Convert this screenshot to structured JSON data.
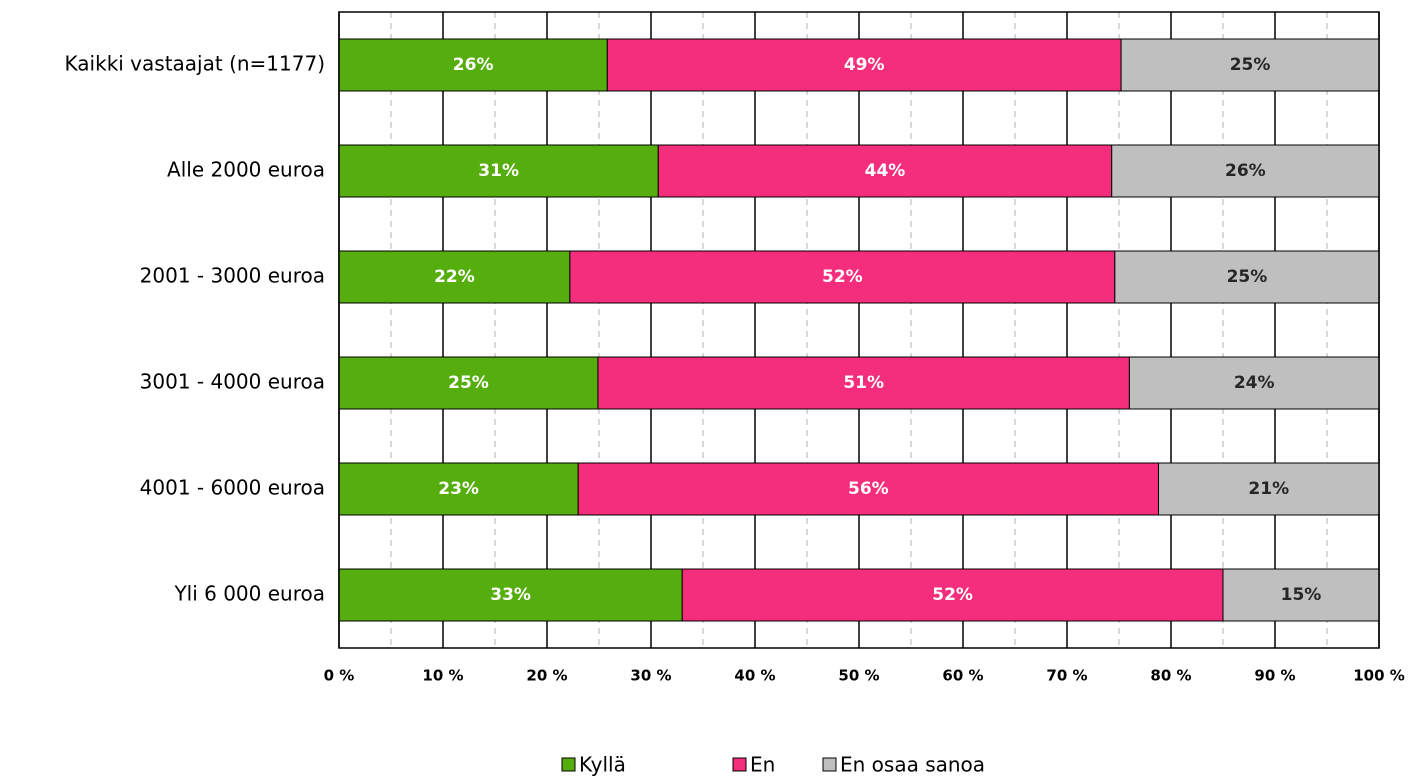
{
  "chart_data": {
    "type": "stacked-barh",
    "categories": [
      "Kaikki vastaajat (n=1177)",
      "Alle 2000 euroa",
      "2001 - 3000 euroa",
      "3001 - 4000 euroa",
      "4001 - 6000 euroa",
      "Yli 6 000 euroa"
    ],
    "series": [
      {
        "name": "Kyllä",
        "color": "#56ad0e",
        "label_color": "#ffffff",
        "values": [
          25.8,
          30.7,
          22.2,
          24.9,
          23.0,
          33.0
        ],
        "value_labels": [
          "26%",
          "31%",
          "22%",
          "25%",
          "23%",
          "33%"
        ]
      },
      {
        "name": "En",
        "color": "#f42d7c",
        "label_color": "#ffffff",
        "values": [
          49.4,
          43.6,
          52.4,
          51.1,
          55.8,
          52.0
        ],
        "value_labels": [
          "49%",
          "44%",
          "52%",
          "51%",
          "56%",
          "52%"
        ]
      },
      {
        "name": "En osaa sanoa",
        "color": "#bfbfbf",
        "label_color": "#262626",
        "values": [
          24.8,
          25.7,
          25.4,
          24.0,
          21.2,
          15.0
        ],
        "value_labels": [
          "25%",
          "26%",
          "25%",
          "24%",
          "21%",
          "15%"
        ]
      }
    ],
    "xlim": [
      0,
      100
    ],
    "xticks": [
      {
        "value": 0,
        "label": "0 %"
      },
      {
        "value": 10,
        "label": "10 %"
      },
      {
        "value": 20,
        "label": "20 %"
      },
      {
        "value": 30,
        "label": "30 %"
      },
      {
        "value": 40,
        "label": "40 %"
      },
      {
        "value": 50,
        "label": "50 %"
      },
      {
        "value": 60,
        "label": "60 %"
      },
      {
        "value": 70,
        "label": "70 %"
      },
      {
        "value": 80,
        "label": "80 %"
      },
      {
        "value": 90,
        "label": "90 %"
      },
      {
        "value": 100,
        "label": "100 %"
      }
    ],
    "minor_xticks": [
      5,
      15,
      25,
      35,
      45,
      55,
      65,
      75,
      85,
      95
    ],
    "grid": true,
    "legend": "bottom"
  }
}
